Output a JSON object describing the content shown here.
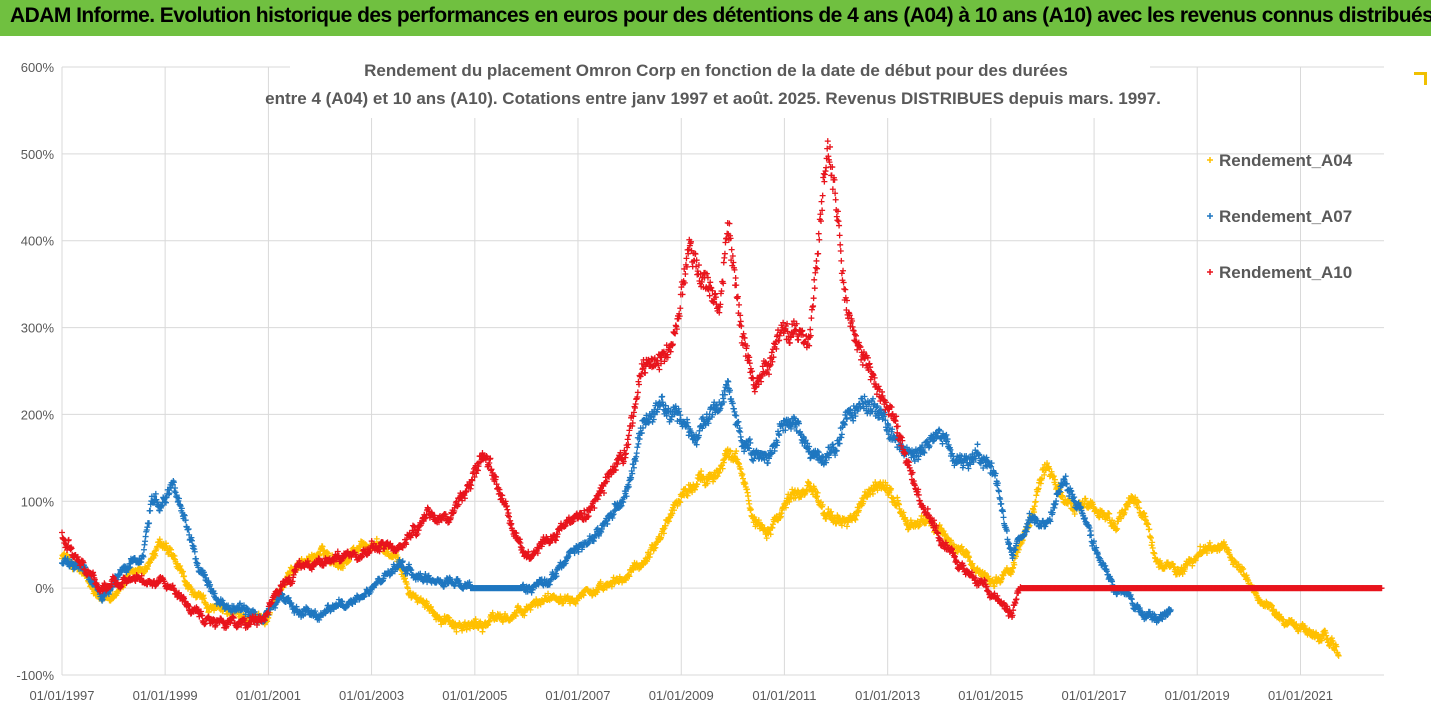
{
  "banner": {
    "title": "ADAM Informe. Evolution historique des performances en euros pour des détentions de 4 ans (A04) à 10 ans (A10) avec les revenus connus distribués"
  },
  "chart_data": {
    "type": "scatter",
    "title_line1": "Rendement du placement Omron Corp en fonction de la date de début pour des durées",
    "title_line2": "entre 4 (A04) et 10 ans (A10). Cotations entre janv 1997 et août. 2025. Revenus DISTRIBUES depuis mars. 1997.",
    "x_axis": {
      "type": "date",
      "range": [
        "1997-01-01",
        "2022-08-15"
      ],
      "tick_labels": [
        "01/01/1997",
        "01/01/1999",
        "01/01/2001",
        "01/01/2003",
        "01/01/2005",
        "01/01/2007",
        "01/01/2009",
        "01/01/2011",
        "01/01/2013",
        "01/01/2015",
        "01/01/2017",
        "01/01/2019",
        "01/01/2021"
      ]
    },
    "y_axis": {
      "range": [
        -1.0,
        6.0
      ],
      "ticks": [
        -1.0,
        0,
        1.0,
        2.0,
        3.0,
        4.0,
        5.0,
        6.0
      ],
      "tick_labels": [
        "-100%",
        "0%",
        "100%",
        "200%",
        "300%",
        "400%",
        "500%",
        "600%"
      ]
    },
    "grid": true,
    "legend_position": "right",
    "series": [
      {
        "name": "Rendement_A04",
        "color": "#ffc000",
        "points": [
          [
            "1997-01-01",
            0.4
          ],
          [
            "1997-06-01",
            0.15
          ],
          [
            "1997-10-01",
            -0.2
          ],
          [
            "1998-03-01",
            0.05
          ],
          [
            "1998-08-01",
            0.2
          ],
          [
            "1998-12-01",
            0.5
          ],
          [
            "1999-03-01",
            0.3
          ],
          [
            "1999-06-01",
            0.0
          ],
          [
            "1999-10-01",
            -0.2
          ],
          [
            "2000-03-01",
            -0.3
          ],
          [
            "2000-08-01",
            -0.35
          ],
          [
            "2000-12-01",
            -0.35
          ],
          [
            "2001-04-01",
            0.0
          ],
          [
            "2001-08-01",
            0.3
          ],
          [
            "2002-01-01",
            0.4
          ],
          [
            "2002-06-01",
            0.3
          ],
          [
            "2002-10-01",
            0.5
          ],
          [
            "2003-03-01",
            0.5
          ],
          [
            "2003-07-01",
            0.3
          ],
          [
            "2003-10-01",
            -0.05
          ],
          [
            "2004-02-01",
            -0.25
          ],
          [
            "2004-07-01",
            -0.35
          ],
          [
            "2004-12-01",
            -0.45
          ],
          [
            "2005-06-01",
            -0.35
          ],
          [
            "2005-12-01",
            -0.3
          ],
          [
            "2006-06-01",
            -0.1
          ],
          [
            "2006-10-01",
            -0.05
          ],
          [
            "2007-03-01",
            0.0
          ],
          [
            "2007-07-01",
            -0.05
          ],
          [
            "2007-12-01",
            0.1
          ],
          [
            "2008-04-01",
            0.3
          ],
          [
            "2008-08-01",
            0.6
          ],
          [
            "2008-12-01",
            1.0
          ],
          [
            "2009-04-01",
            1.2
          ],
          [
            "2009-08-01",
            1.3
          ],
          [
            "2009-12-01",
            1.6
          ],
          [
            "2010-03-01",
            1.3
          ],
          [
            "2010-06-01",
            0.8
          ],
          [
            "2010-09-01",
            0.7
          ],
          [
            "2010-12-01",
            0.9
          ],
          [
            "2011-03-01",
            1.1
          ],
          [
            "2011-07-01",
            1.2
          ],
          [
            "2011-10-01",
            1.0
          ],
          [
            "2012-01-01",
            0.7
          ],
          [
            "2012-04-01",
            0.8
          ],
          [
            "2012-08-01",
            1.0
          ],
          [
            "2012-12-01",
            1.2
          ],
          [
            "2013-03-01",
            1.0
          ],
          [
            "2013-06-01",
            0.7
          ],
          [
            "2013-10-01",
            0.8
          ],
          [
            "2014-02-01",
            0.6
          ],
          [
            "2014-06-01",
            0.4
          ],
          [
            "2014-10-01",
            0.2
          ],
          [
            "2015-02-01",
            0.1
          ],
          [
            "2015-06-01",
            0.2
          ],
          [
            "2015-10-01",
            0.8
          ],
          [
            "2016-02-01",
            1.4
          ],
          [
            "2016-06-01",
            1.0
          ],
          [
            "2016-10-01",
            1.0
          ],
          [
            "2017-02-01",
            0.9
          ],
          [
            "2017-06-01",
            0.75
          ],
          [
            "2017-10-01",
            1.0
          ],
          [
            "2018-01-01",
            0.8
          ],
          [
            "2018-04-01",
            0.3
          ],
          [
            "2018-08-01",
            0.2
          ],
          [
            "2018-12-01",
            0.3
          ],
          [
            "2019-04-01",
            0.5
          ],
          [
            "2019-08-01",
            0.4
          ],
          [
            "2019-12-01",
            0.2
          ],
          [
            "2020-03-01",
            -0.1
          ],
          [
            "2020-07-01",
            -0.3
          ],
          [
            "2020-11-01",
            -0.4
          ],
          [
            "2021-03-01",
            -0.5
          ],
          [
            "2021-07-01",
            -0.6
          ],
          [
            "2021-10-01",
            -0.7
          ]
        ]
      },
      {
        "name": "Rendement_A07",
        "color": "#1f77c0",
        "points": [
          [
            "1997-01-01",
            0.3
          ],
          [
            "1997-06-01",
            0.2
          ],
          [
            "1997-10-01",
            -0.1
          ],
          [
            "1998-03-01",
            0.2
          ],
          [
            "1998-08-01",
            0.4
          ],
          [
            "1998-10-01",
            1.1
          ],
          [
            "1998-12-01",
            1.0
          ],
          [
            "1999-03-01",
            1.2
          ],
          [
            "1999-06-01",
            0.8
          ],
          [
            "1999-09-01",
            0.2
          ],
          [
            "2000-01-01",
            -0.1
          ],
          [
            "2000-06-01",
            -0.25
          ],
          [
            "2000-12-01",
            -0.35
          ],
          [
            "2001-04-01",
            -0.1
          ],
          [
            "2001-08-01",
            -0.25
          ],
          [
            "2002-01-01",
            -0.3
          ],
          [
            "2002-06-01",
            -0.15
          ],
          [
            "2002-10-01",
            -0.2
          ],
          [
            "2003-03-01",
            0.1
          ],
          [
            "2003-07-01",
            0.2
          ],
          [
            "2003-10-01",
            0.2
          ],
          [
            "2004-02-01",
            0.05
          ],
          [
            "2004-07-01",
            0.1
          ],
          [
            "2004-12-01",
            0.0
          ],
          [
            "2005-06-01",
            0.0
          ],
          [
            "2005-12-01",
            0.0
          ],
          [
            "2006-06-01",
            0.1
          ],
          [
            "2006-10-01",
            0.3
          ],
          [
            "2007-03-01",
            0.5
          ],
          [
            "2007-07-01",
            0.7
          ],
          [
            "2007-12-01",
            1.0
          ],
          [
            "2008-04-01",
            1.8
          ],
          [
            "2008-08-01",
            2.1
          ],
          [
            "2008-12-01",
            2.0
          ],
          [
            "2009-04-01",
            1.7
          ],
          [
            "2009-08-01",
            2.0
          ],
          [
            "2009-12-01",
            2.3
          ],
          [
            "2010-03-01",
            1.7
          ],
          [
            "2010-06-01",
            1.5
          ],
          [
            "2010-09-01",
            1.4
          ],
          [
            "2010-12-01",
            1.8
          ],
          [
            "2011-03-01",
            1.9
          ],
          [
            "2011-07-01",
            1.5
          ],
          [
            "2011-10-01",
            1.5
          ],
          [
            "2012-01-01",
            1.6
          ],
          [
            "2012-04-01",
            2.0
          ],
          [
            "2012-08-01",
            2.1
          ],
          [
            "2012-12-01",
            2.0
          ],
          [
            "2013-03-01",
            1.7
          ],
          [
            "2013-06-01",
            1.5
          ],
          [
            "2013-10-01",
            1.6
          ],
          [
            "2014-02-01",
            1.7
          ],
          [
            "2014-06-01",
            1.5
          ],
          [
            "2014-10-01",
            1.5
          ],
          [
            "2015-02-01",
            1.3
          ],
          [
            "2015-06-01",
            0.4
          ],
          [
            "2015-10-01",
            0.8
          ],
          [
            "2016-02-01",
            0.7
          ],
          [
            "2016-06-01",
            1.2
          ],
          [
            "2016-10-01",
            0.9
          ],
          [
            "2017-02-01",
            0.4
          ],
          [
            "2017-06-01",
            0.0
          ],
          [
            "2017-10-01",
            -0.1
          ],
          [
            "2018-01-01",
            -0.3
          ],
          [
            "2018-04-01",
            -0.35
          ],
          [
            "2018-07-01",
            -0.3
          ]
        ]
      },
      {
        "name": "Rendement_A10",
        "color": "#e8141c",
        "points": [
          [
            "1997-01-01",
            0.6
          ],
          [
            "1997-06-01",
            0.3
          ],
          [
            "1997-10-01",
            0.0
          ],
          [
            "1998-03-01",
            0.1
          ],
          [
            "1998-08-01",
            0.05
          ],
          [
            "1998-12-01",
            0.1
          ],
          [
            "1999-03-01",
            0.0
          ],
          [
            "1999-06-01",
            -0.2
          ],
          [
            "1999-10-01",
            -0.35
          ],
          [
            "2000-03-01",
            -0.4
          ],
          [
            "2000-08-01",
            -0.4
          ],
          [
            "2000-12-01",
            -0.4
          ],
          [
            "2001-04-01",
            0.0
          ],
          [
            "2001-08-01",
            0.2
          ],
          [
            "2002-01-01",
            0.3
          ],
          [
            "2002-06-01",
            0.4
          ],
          [
            "2002-10-01",
            0.4
          ],
          [
            "2003-03-01",
            0.5
          ],
          [
            "2003-07-01",
            0.4
          ],
          [
            "2003-10-01",
            0.6
          ],
          [
            "2004-02-01",
            0.9
          ],
          [
            "2004-07-01",
            0.8
          ],
          [
            "2004-12-01",
            1.2
          ],
          [
            "2005-03-01",
            1.5
          ],
          [
            "2005-06-01",
            1.2
          ],
          [
            "2005-10-01",
            0.6
          ],
          [
            "2006-02-01",
            0.3
          ],
          [
            "2006-06-01",
            0.6
          ],
          [
            "2006-10-01",
            0.7
          ],
          [
            "2007-03-01",
            0.9
          ],
          [
            "2007-07-01",
            1.2
          ],
          [
            "2007-12-01",
            1.5
          ],
          [
            "2008-04-01",
            2.5
          ],
          [
            "2008-08-01",
            2.7
          ],
          [
            "2008-12-01",
            3.0
          ],
          [
            "2009-03-01",
            4.0
          ],
          [
            "2009-06-01",
            3.5
          ],
          [
            "2009-10-01",
            3.2
          ],
          [
            "2009-12-01",
            4.2
          ],
          [
            "2010-03-01",
            3.0
          ],
          [
            "2010-06-01",
            2.3
          ],
          [
            "2010-09-01",
            2.5
          ],
          [
            "2010-12-01",
            3.0
          ],
          [
            "2011-03-01",
            3.0
          ],
          [
            "2011-07-01",
            2.8
          ],
          [
            "2011-09-01",
            4.0
          ],
          [
            "2011-11-01",
            5.1
          ],
          [
            "2012-01-01",
            4.5
          ],
          [
            "2012-03-01",
            3.3
          ],
          [
            "2012-06-01",
            2.8
          ],
          [
            "2012-10-01",
            2.4
          ],
          [
            "2013-03-01",
            1.8
          ],
          [
            "2013-06-01",
            1.4
          ],
          [
            "2013-10-01",
            0.8
          ],
          [
            "2014-02-01",
            0.5
          ],
          [
            "2014-06-01",
            0.3
          ],
          [
            "2014-10-01",
            0.1
          ],
          [
            "2015-02-01",
            -0.1
          ],
          [
            "2015-06-01",
            -0.3
          ],
          [
            "2015-08-01",
            0.0
          ],
          [
            "2016-06-01",
            0.0
          ],
          [
            "2017-06-01",
            0.0
          ],
          [
            "2018-06-01",
            0.0
          ],
          [
            "2019-06-01",
            0.0
          ],
          [
            "2020-06-01",
            0.0
          ],
          [
            "2021-06-01",
            0.0
          ],
          [
            "2022-08-01",
            0.0
          ]
        ]
      }
    ]
  }
}
